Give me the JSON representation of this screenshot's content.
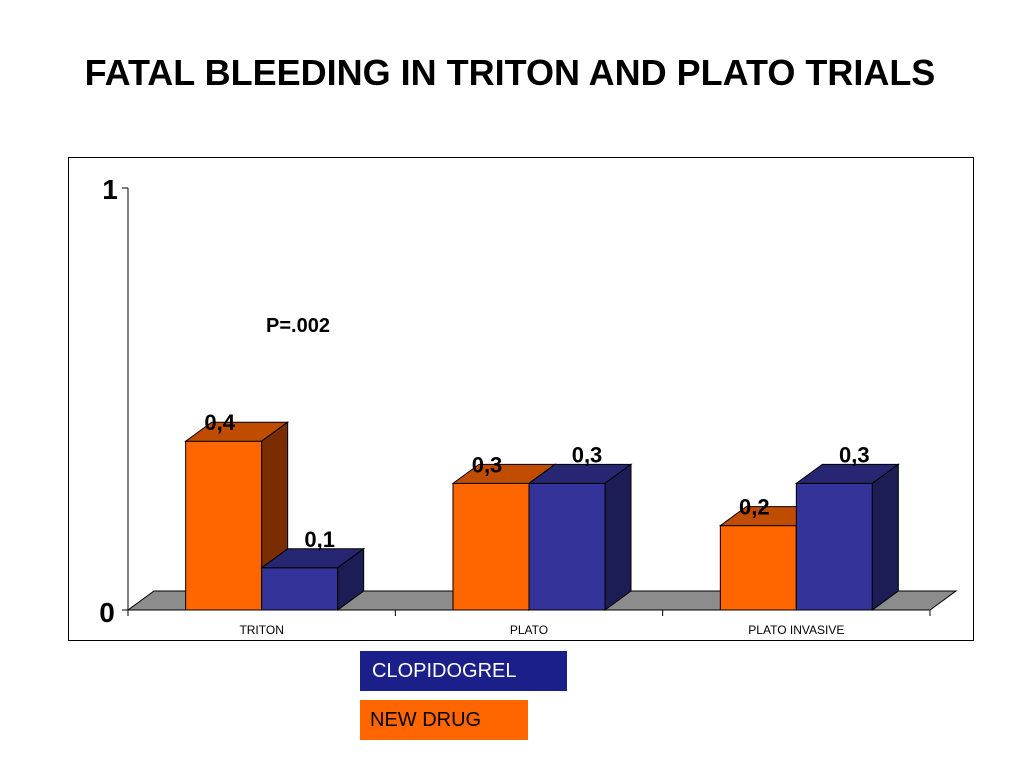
{
  "title": "FATAL BLEEDING IN TRITON AND PLATO TRIALS",
  "annotation": "P=.002",
  "legend": {
    "clopidogrel": "CLOPIDOGREL",
    "new_drug": "NEW DRUG"
  },
  "colors": {
    "new_drug": "#ff6600",
    "new_drug_side": "#7a2e00",
    "new_drug_top": "#c04c00",
    "clopidogrel": "#333399",
    "clopidogrel_side": "#1d1d55",
    "clopidogrel_top": "#262673",
    "floor": "#8c8c8c"
  },
  "chart_data": {
    "type": "bar",
    "categories": [
      "TRITON",
      "PLATO",
      "PLATO INVASIVE"
    ],
    "series": [
      {
        "name": "NEW DRUG",
        "values": [
          0.4,
          0.3,
          0.2
        ],
        "labels": [
          "0,4",
          "0,3",
          "0,2"
        ]
      },
      {
        "name": "CLOPIDOGREL",
        "values": [
          0.1,
          0.3,
          0.3
        ],
        "labels": [
          "0,1",
          "0,3",
          "0,3"
        ]
      }
    ],
    "ylim": [
      0,
      1
    ],
    "yticks": [
      "0",
      "1"
    ],
    "grid": false,
    "legend_position": "bottom"
  }
}
